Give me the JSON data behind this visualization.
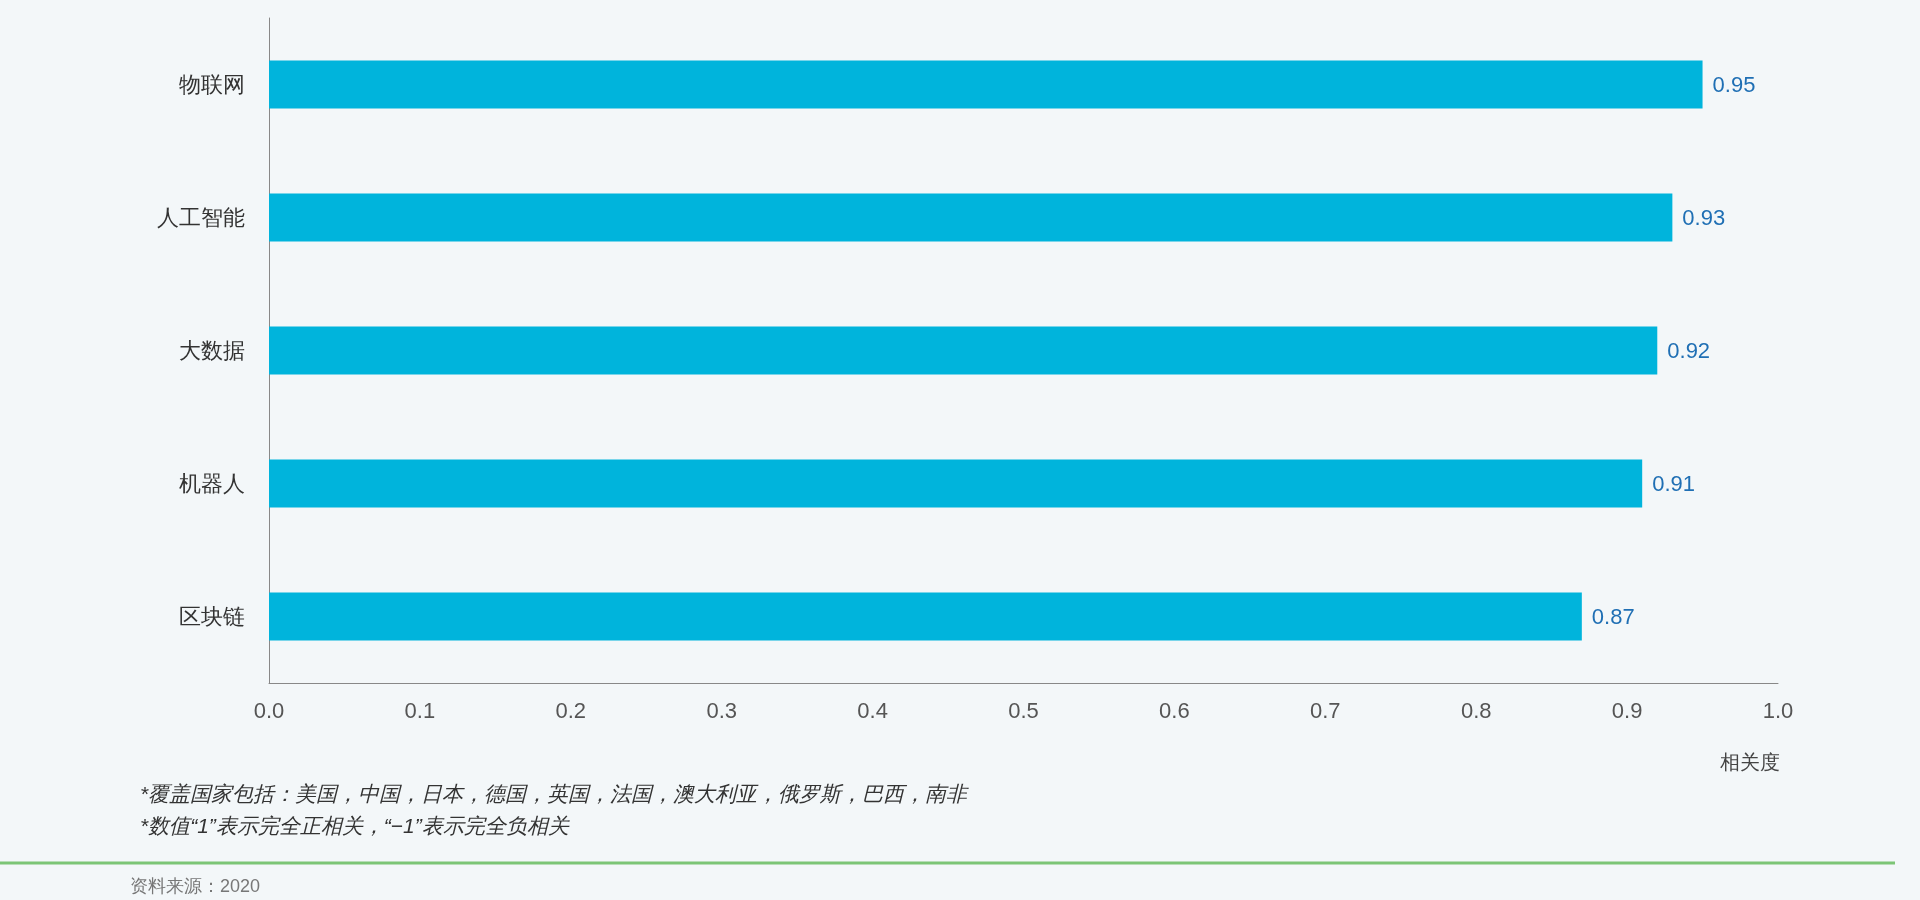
{
  "chart_data": {
    "type": "bar",
    "orientation": "horizontal",
    "categories": [
      "物联网",
      "人工智能",
      "大数据",
      "机器人",
      "区块链"
    ],
    "values": [
      0.95,
      0.93,
      0.92,
      0.91,
      0.87
    ],
    "color": "#00b4dc",
    "data_labels": true,
    "xlabel": "相关度",
    "xlim": [
      0,
      1
    ],
    "xticks": [
      {
        "value": 0,
        "label": "0.0"
      },
      0.1,
      0.2,
      0.3,
      0.4,
      0.5,
      0.6,
      0.7,
      0.8,
      0.9,
      {
        "value": 1,
        "label": "1.0"
      }
    ],
    "grid": false,
    "annotations": [
      "*覆盖国家包括：美国，中国，日本，德国，英国，法国，澳大利亚，俄罗斯，巴西，南非",
      "*数值“1”表示完全正相关，“−1”表示完全负相关",
      "资料来源：2020"
    ]
  }
}
